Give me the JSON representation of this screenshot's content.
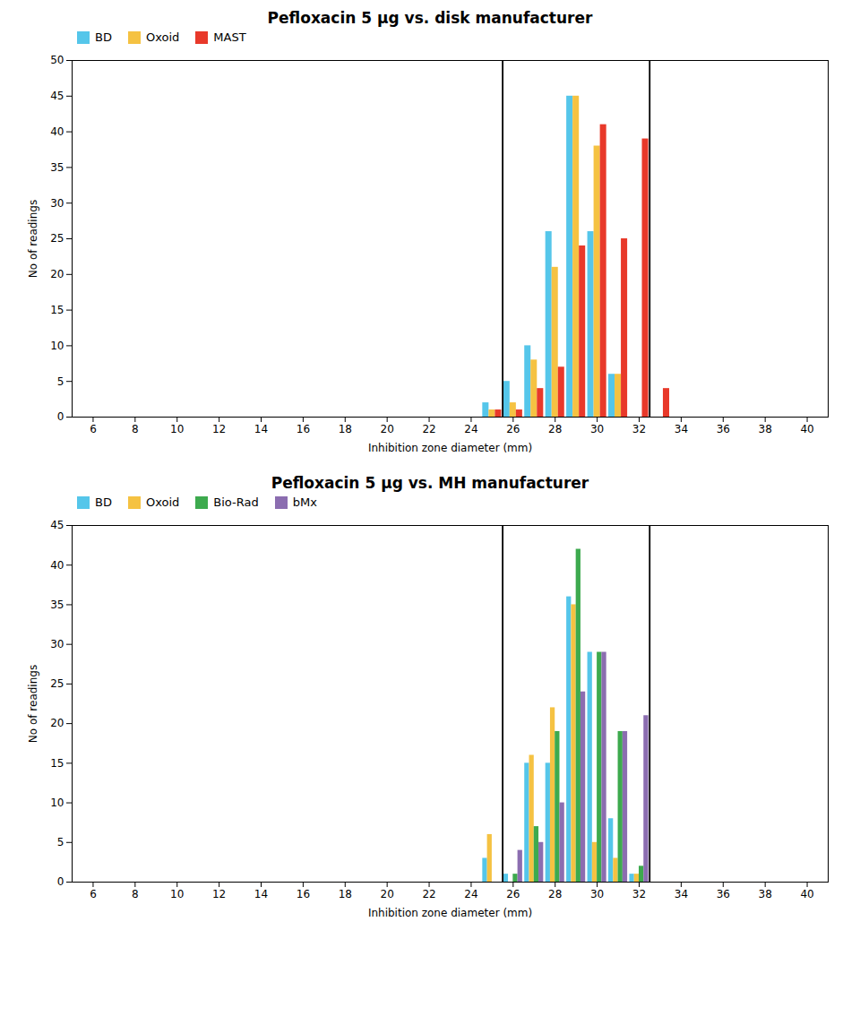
{
  "chart_data": [
    {
      "type": "bar",
      "title": "Pefloxacin 5 μg vs. disk manufacturer",
      "xlabel": "Inhibition zone diameter (mm)",
      "ylabel": "No of readings",
      "x": [
        25,
        26,
        27,
        28,
        29,
        30,
        31,
        32,
        33
      ],
      "series": [
        {
          "name": "BD",
          "color": "#55C6EA",
          "values": [
            2,
            5,
            10,
            26,
            45,
            26,
            6,
            0,
            0
          ]
        },
        {
          "name": "Oxoid",
          "color": "#F5C242",
          "values": [
            1,
            2,
            8,
            21,
            45,
            38,
            6,
            0,
            0
          ]
        },
        {
          "name": "MAST",
          "color": "#E8392A",
          "values": [
            1,
            1,
            4,
            7,
            24,
            41,
            25,
            39,
            4
          ]
        }
      ],
      "vlines": [
        25.5,
        32.5
      ],
      "xlim": [
        5,
        41
      ],
      "xticks": [
        6,
        8,
        10,
        12,
        14,
        16,
        18,
        20,
        22,
        24,
        26,
        28,
        30,
        32,
        34,
        36,
        38,
        40
      ],
      "ylim": [
        0,
        50
      ],
      "yticks": [
        0,
        5,
        10,
        15,
        20,
        25,
        30,
        35,
        40,
        45,
        50
      ],
      "grid": false,
      "legend": "upper left"
    },
    {
      "type": "bar",
      "title": "Pefloxacin 5 μg vs. MH manufacturer",
      "xlabel": "Inhibition zone diameter (mm)",
      "ylabel": "No of readings",
      "x": [
        25,
        26,
        27,
        28,
        29,
        30,
        31,
        32
      ],
      "series": [
        {
          "name": "BD",
          "color": "#55C6EA",
          "values": [
            3,
            1,
            15,
            15,
            36,
            29,
            8,
            1
          ]
        },
        {
          "name": "Oxoid",
          "color": "#F5C242",
          "values": [
            6,
            0,
            16,
            22,
            35,
            5,
            3,
            1
          ]
        },
        {
          "name": "Bio-Rad",
          "color": "#3DAA4E",
          "values": [
            0,
            1,
            7,
            19,
            42,
            29,
            19,
            2
          ]
        },
        {
          "name": "bMx",
          "color": "#8B6DB0",
          "values": [
            0,
            4,
            5,
            10,
            24,
            29,
            19,
            21
          ]
        }
      ],
      "vlines": [
        25.5,
        32.5
      ],
      "xlim": [
        5,
        41
      ],
      "xticks": [
        6,
        8,
        10,
        12,
        14,
        16,
        18,
        20,
        22,
        24,
        26,
        28,
        30,
        32,
        34,
        36,
        38,
        40
      ],
      "ylim": [
        0,
        45
      ],
      "yticks": [
        0,
        5,
        10,
        15,
        20,
        25,
        30,
        35,
        40,
        45
      ],
      "grid": false,
      "legend": "upper left"
    }
  ]
}
